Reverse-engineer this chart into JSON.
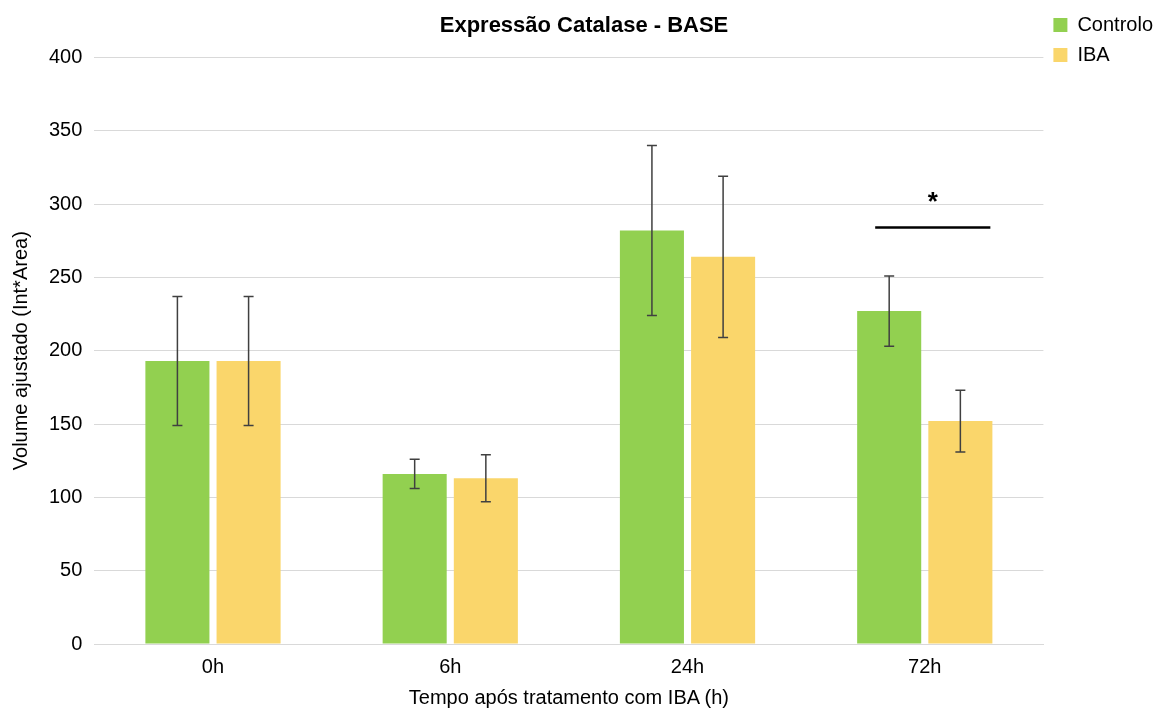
{
  "chart_data": {
    "type": "bar",
    "title": "Expressão Catalase - BASE",
    "xlabel": "Tempo após tratamento com IBA (h)",
    "ylabel": "Volume ajustado (Int*Area)",
    "categories": [
      "0h",
      "6h",
      "24h",
      "72h"
    ],
    "series": [
      {
        "name": "Controlo",
        "color": "#92d050",
        "values": [
          193,
          116,
          282,
          227
        ],
        "errors": [
          44,
          10,
          58,
          24
        ]
      },
      {
        "name": "IBA",
        "color": "#fad66b",
        "values": [
          193,
          113,
          264,
          152
        ],
        "errors": [
          44,
          16,
          55,
          21
        ]
      }
    ],
    "ylim": [
      0,
      400
    ],
    "yticks": [
      0,
      50,
      100,
      150,
      200,
      250,
      300,
      350,
      400
    ],
    "grid": "y",
    "legend": "top right",
    "annotations": [
      "*"
    ]
  }
}
